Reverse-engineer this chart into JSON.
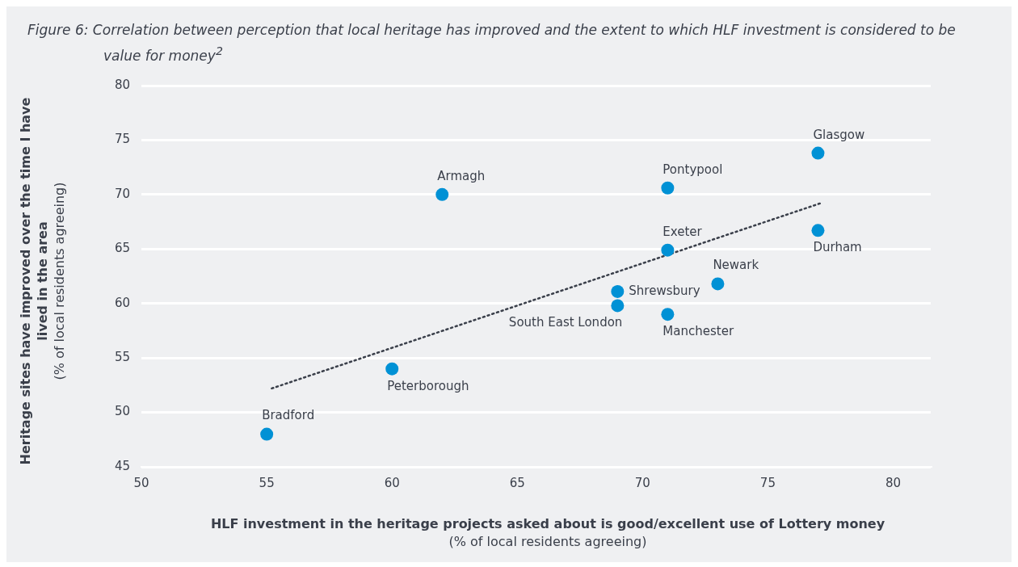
{
  "chart_data": {
    "type": "scatter",
    "title": "Figure 6: Correlation between perception that local heritage has improved and the extent to which HLF investment is considered to be value for money$^{2}$",
    "xlabel": "HLF investment in the heritage projects asked about is good/excellent use of Lottery money (% of local residents agreeing)",
    "ylabel": "Heritage sites have improved over the time I have lived in the area (% of local residents agreeing)",
    "series": [
      {
        "color": "#0091d5",
        "x": [
          55,
          60,
          62,
          71,
          77,
          77,
          71,
          73,
          69,
          69,
          71
        ],
        "values": [
          48,
          54,
          70,
          70.6,
          73.8,
          66.7,
          64.9,
          61.8,
          61.1,
          59.8,
          59
        ]
      },
      {
        "type": "line",
        "color": "#3a3f4a",
        "line_style": "dotted",
        "marker": "none",
        "x": [
          55.2,
          77.1
        ],
        "values": [
          52.2,
          69.2
        ]
      }
    ],
    "annotations": [
      {
        "text": "Bradford",
        "x": 55,
        "y": 48
      },
      {
        "text": "Peterborough",
        "x": 60,
        "y": 54
      },
      {
        "text": "Armagh",
        "x": 62,
        "y": 70
      },
      {
        "text": "Pontypool",
        "x": 71,
        "y": 70.6
      },
      {
        "text": "Glasgow",
        "x": 77,
        "y": 73.8
      },
      {
        "text": "Durham",
        "x": 77,
        "y": 66.7
      },
      {
        "text": "Exeter",
        "x": 71,
        "y": 64.9
      },
      {
        "text": "Newark",
        "x": 73,
        "y": 61.8
      },
      {
        "text": "Shrewsbury",
        "x": 69,
        "y": 61.1
      },
      {
        "text": "South East London",
        "x": 69,
        "y": 59.8
      },
      {
        "text": "Manchester",
        "x": 71,
        "y": 59
      }
    ],
    "xlim": [
      50,
      81.5
    ],
    "xticks": [
      50,
      55,
      60,
      65,
      70,
      75,
      80
    ],
    "ylim": [
      45,
      80
    ],
    "yticks": [
      45,
      50,
      55,
      60,
      65,
      70,
      75,
      80
    ],
    "grid": "y",
    "legend": false,
    "marker": "circle"
  }
}
